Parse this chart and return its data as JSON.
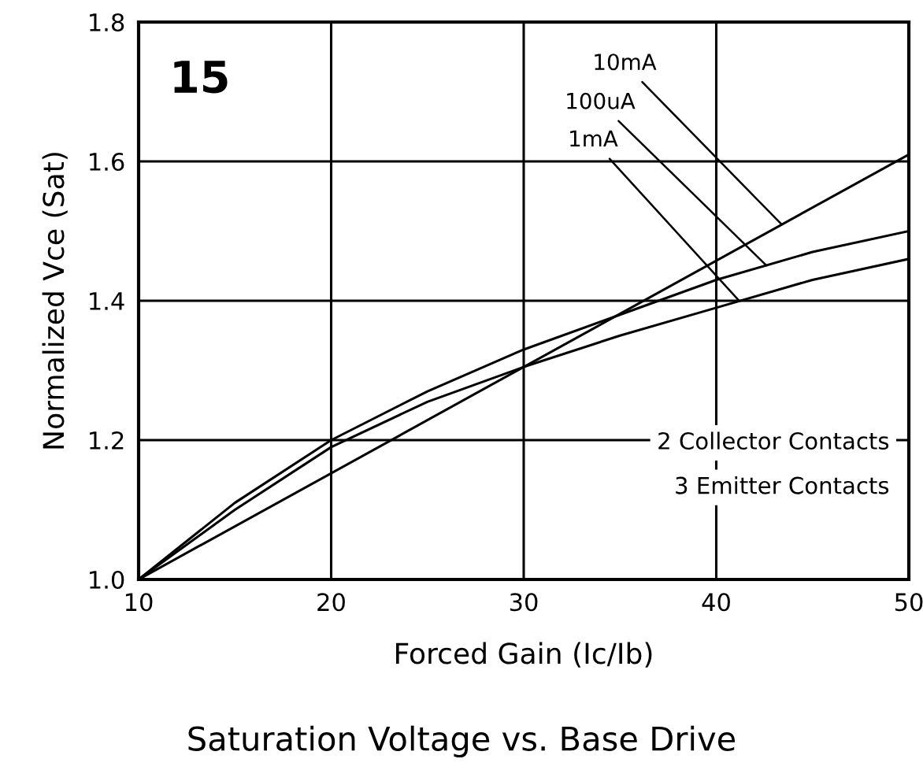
{
  "chart_data": {
    "type": "line",
    "title": "Saturation Voltage vs. Base Drive",
    "xlabel": "Forced Gain (Ic/Ib)",
    "ylabel": "Normalized Vce (Sat)",
    "series": [
      {
        "name": "10mA",
        "color": "#000000",
        "x": [
          10,
          50
        ],
        "values": [
          1.0,
          1.61
        ]
      },
      {
        "name": "100uA",
        "color": "#000000",
        "x": [
          10,
          15,
          20,
          25,
          30,
          35,
          40,
          45,
          50
        ],
        "values": [
          1.0,
          1.11,
          1.2,
          1.27,
          1.33,
          1.38,
          1.43,
          1.47,
          1.5
        ]
      },
      {
        "name": "1mA",
        "color": "#000000",
        "x": [
          10,
          15,
          20,
          25,
          30,
          35,
          40,
          45,
          50
        ],
        "values": [
          1.0,
          1.1,
          1.19,
          1.255,
          1.305,
          1.35,
          1.39,
          1.43,
          1.46
        ]
      }
    ],
    "xlim": [
      10,
      50
    ],
    "xticks": [
      10,
      20,
      30,
      40,
      50
    ],
    "ylim": [
      1.0,
      1.8
    ],
    "yticks": [
      {
        "value": 1.0,
        "label": "1.0"
      },
      1.2,
      1.4,
      1.6,
      1.8
    ],
    "grid": true,
    "legend": false,
    "marker": "none",
    "line_style": "solid",
    "annotations": [
      "15",
      "2 Collector Contacts",
      "3 Emitter Contacts"
    ]
  }
}
